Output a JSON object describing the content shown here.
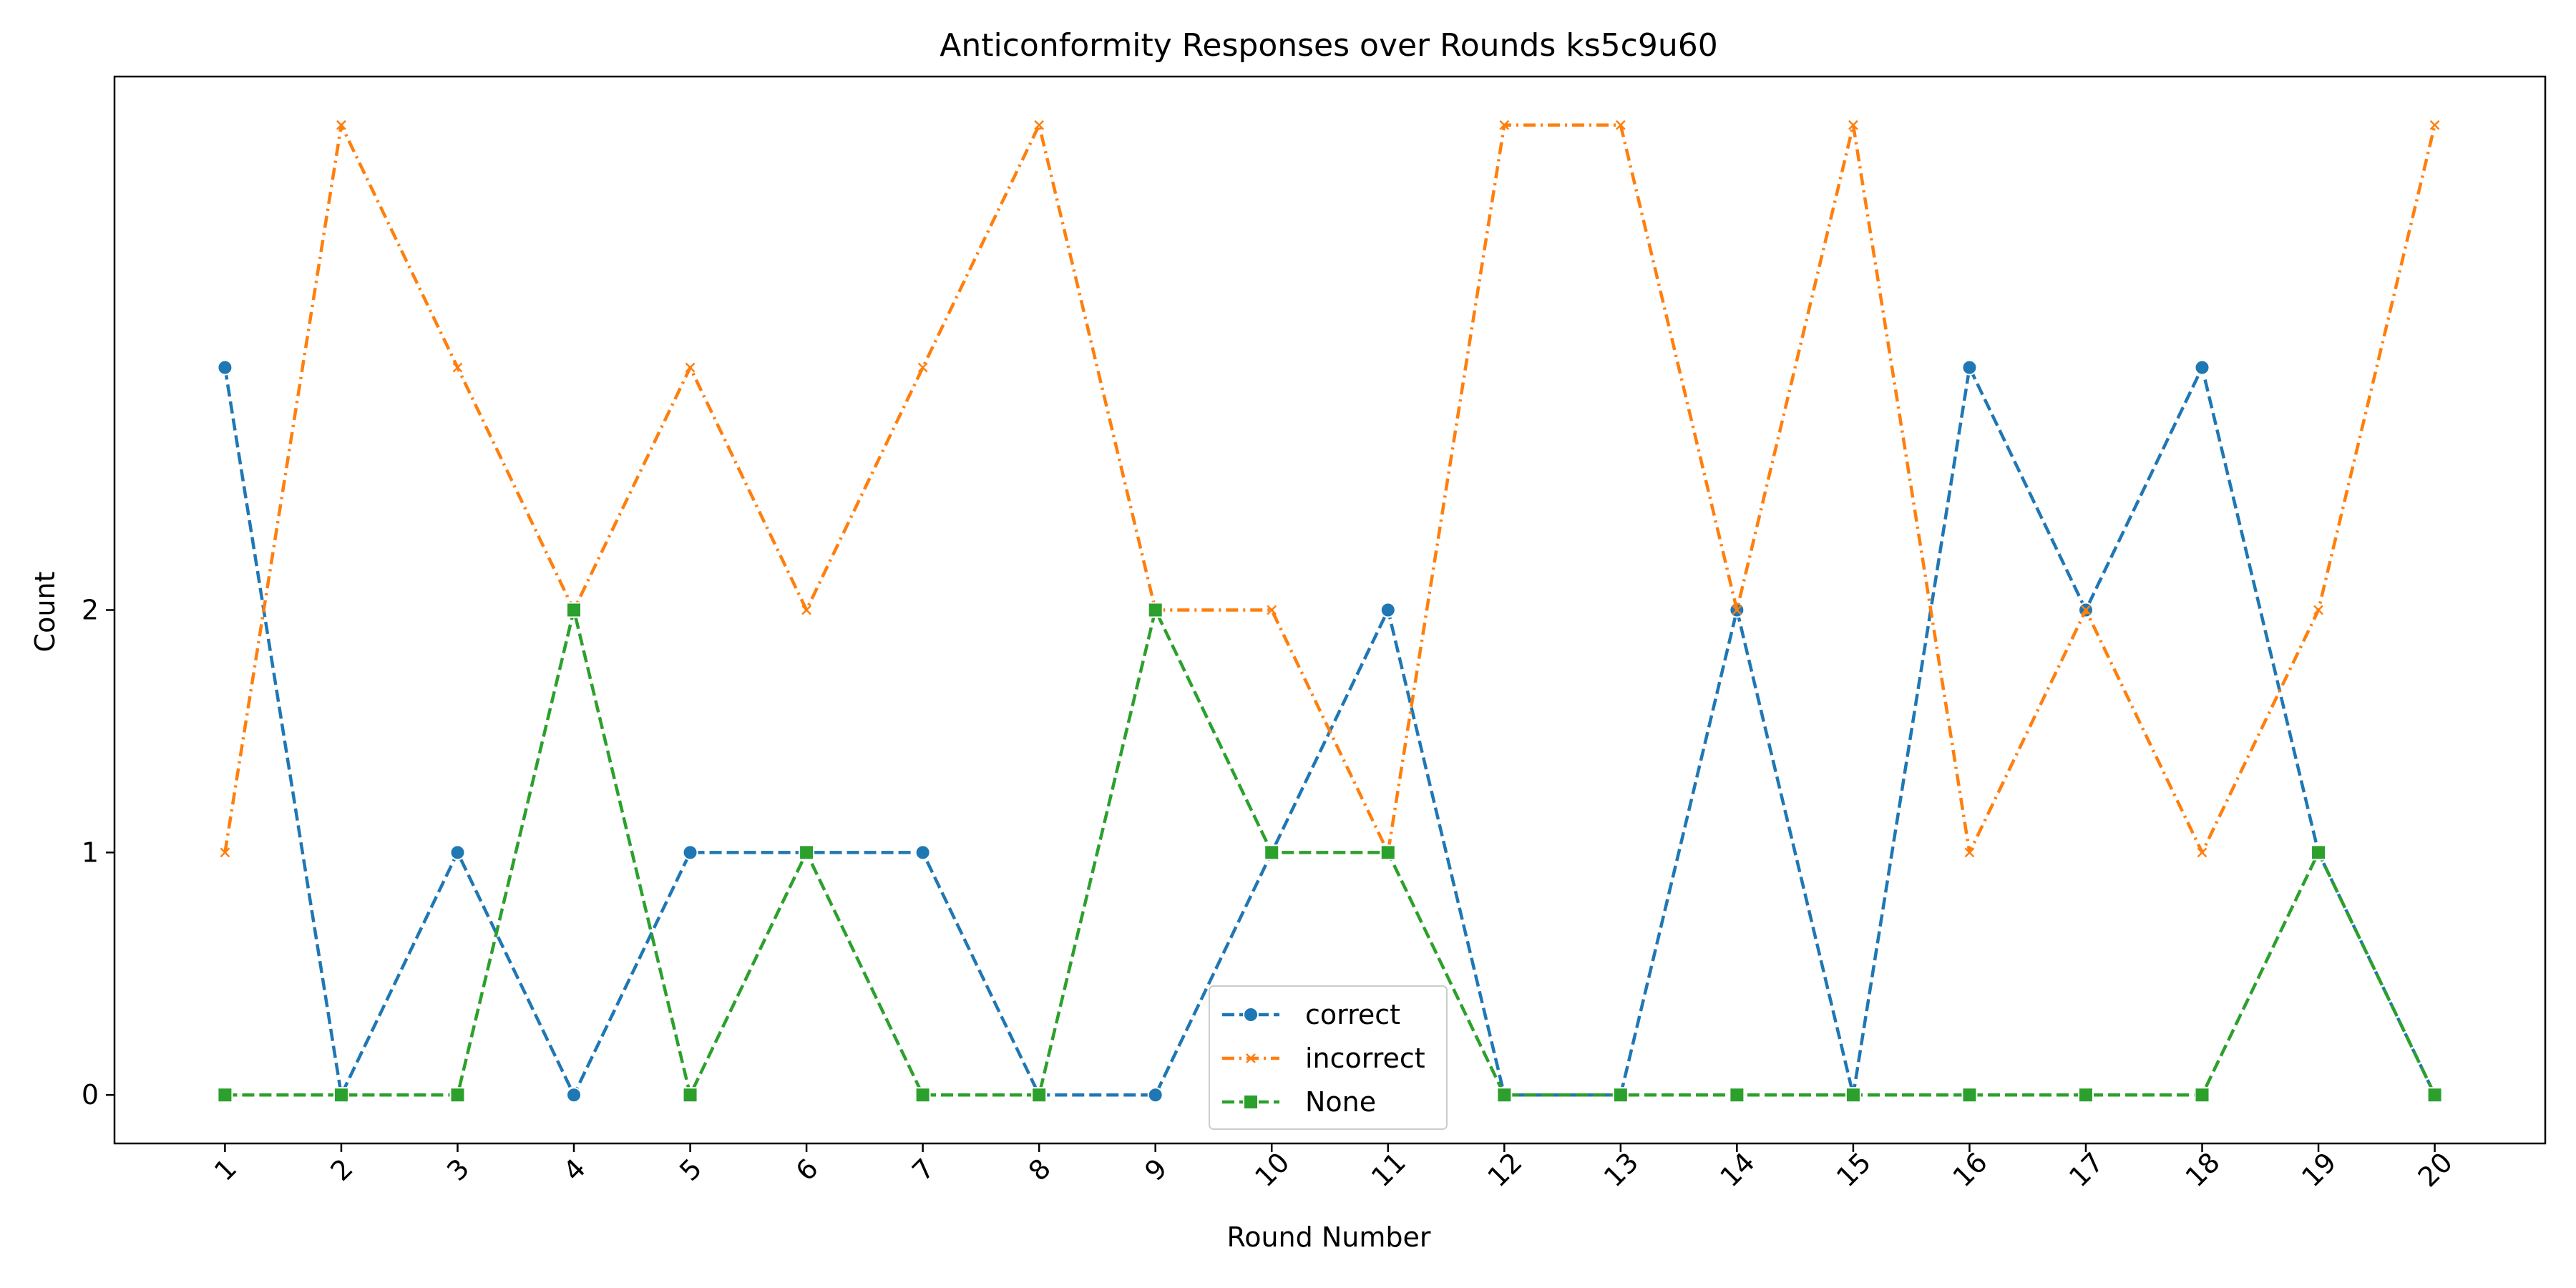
{
  "chart_data": {
    "type": "line",
    "title": "Anticonformity Responses over Rounds ks5c9u60",
    "xlabel": "Round Number",
    "ylabel": "Count",
    "x": [
      1,
      2,
      3,
      4,
      5,
      6,
      7,
      8,
      9,
      10,
      11,
      12,
      13,
      14,
      15,
      16,
      17,
      18,
      19,
      20
    ],
    "xlim": [
      0.05,
      20.95
    ],
    "ylim": [
      -0.2,
      4.2
    ],
    "yticks": [
      0,
      1,
      2
    ],
    "grid": false,
    "legend_position": "bottom-center",
    "series": [
      {
        "name": "correct",
        "color": "#1f77b4",
        "marker": "circle",
        "linestyle": "dashed",
        "values": [
          3,
          0,
          1,
          0,
          1,
          1,
          1,
          0,
          0,
          1,
          2,
          0,
          0,
          2,
          0,
          3,
          2,
          3,
          1,
          0
        ]
      },
      {
        "name": "incorrect",
        "color": "#ff7f0e",
        "marker": "x",
        "linestyle": "dashdot",
        "values": [
          1,
          4,
          3,
          2,
          3,
          2,
          3,
          4,
          2,
          2,
          1,
          4,
          4,
          2,
          4,
          1,
          2,
          1,
          2,
          4
        ]
      },
      {
        "name": "None",
        "color": "#2ca02c",
        "marker": "square",
        "linestyle": "dashed",
        "values": [
          0,
          0,
          0,
          2,
          0,
          1,
          0,
          0,
          2,
          1,
          1,
          0,
          0,
          0,
          0,
          0,
          0,
          0,
          1,
          0
        ]
      }
    ]
  }
}
